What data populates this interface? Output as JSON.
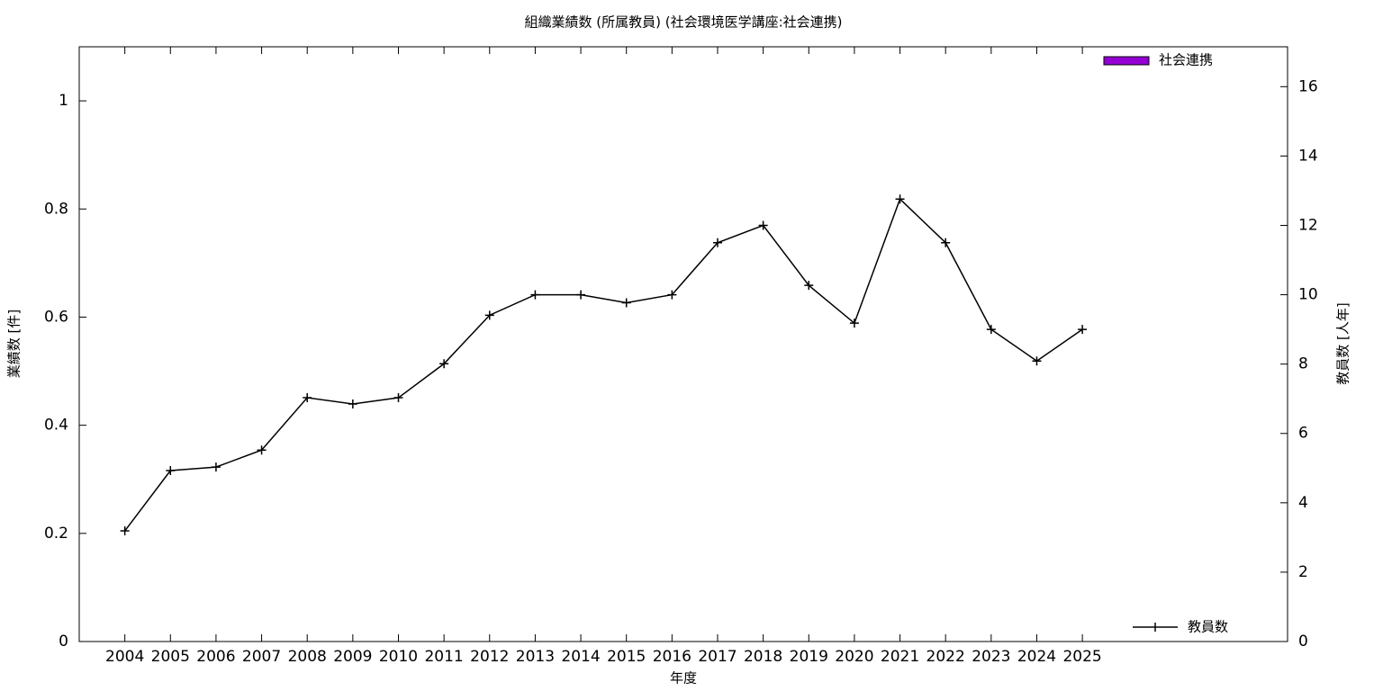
{
  "chart_data": {
    "type": "bar+line",
    "title": "組織業績数 (所属教員) (社会環境医学講座:社会連携)",
    "xlabel": "年度",
    "ylabel": "業績数 [件]",
    "y2label": "教員数 [人年]",
    "x": [
      2004,
      2005,
      2006,
      2007,
      2008,
      2009,
      2010,
      2011,
      2012,
      2013,
      2014,
      2015,
      2016,
      2017,
      2018,
      2019,
      2020,
      2021,
      2022,
      2023,
      2024,
      2025
    ],
    "xlim": [
      2003,
      2029.5
    ],
    "xticks": [
      2004,
      2005,
      2006,
      2007,
      2008,
      2009,
      2010,
      2011,
      2012,
      2013,
      2014,
      2015,
      2016,
      2017,
      2018,
      2019,
      2020,
      2021,
      2022,
      2023,
      2024,
      2025
    ],
    "ylim": [
      0,
      1.1
    ],
    "yticks": [
      0,
      0.2,
      0.4,
      0.6,
      0.8,
      1
    ],
    "y2lim": [
      0,
      17.15
    ],
    "y2ticks": [
      0,
      2,
      4,
      6,
      8,
      10,
      12,
      14,
      16
    ],
    "grid": false,
    "series": [
      {
        "name": "社会連携",
        "type": "bar",
        "color": "#9400d3",
        "legend_corner": "top-right",
        "values": [
          0,
          0,
          0,
          0,
          0,
          0,
          0,
          0,
          0,
          0,
          0,
          0,
          0,
          0,
          0,
          0,
          0,
          0,
          0,
          0,
          0,
          0
        ]
      },
      {
        "name": "教員数",
        "type": "line",
        "axis": "y2",
        "color": "#000000",
        "legend_corner": "bottom-right",
        "values": [
          3.19,
          4.93,
          5.03,
          5.52,
          7.03,
          6.85,
          7.03,
          8.01,
          9.41,
          10,
          10,
          9.77,
          10,
          11.5,
          12,
          10.27,
          9.18,
          12.76,
          11.5,
          9,
          8.09,
          9
        ]
      }
    ]
  }
}
